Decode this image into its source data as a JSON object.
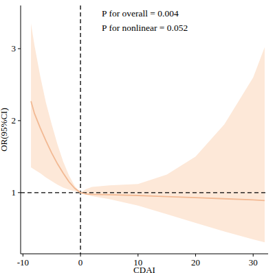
{
  "chart_data": {
    "type": "line",
    "x_label": "CDAI",
    "y_label": "OR(95%CI)",
    "annotations": [
      "P for overall = 0.004",
      "P for nonlinear = 0.052"
    ],
    "xlim": [
      -10.4,
      32.6
    ],
    "ylim": [
      0.15,
      3.6
    ],
    "xticks": [
      -10,
      0,
      10,
      20,
      30
    ],
    "yticks": [
      1,
      2,
      3
    ],
    "hline": 1,
    "vline": 0,
    "series": [
      {
        "name": "OR",
        "color": "#f2b993",
        "band_color": "#fde8d8",
        "x": [
          -8.6,
          -8,
          -7,
          -6,
          -5,
          -4,
          -3,
          -2,
          -1,
          0,
          1,
          2,
          5,
          10,
          15,
          20,
          25,
          30,
          32
        ],
        "values": [
          2.27,
          2.1,
          1.9,
          1.72,
          1.55,
          1.4,
          1.27,
          1.15,
          1.06,
          1.0,
          0.98,
          0.975,
          0.97,
          0.96,
          0.945,
          0.93,
          0.915,
          0.9,
          0.89
        ],
        "lower": [
          1.35,
          1.32,
          1.27,
          1.21,
          1.16,
          1.11,
          1.07,
          1.04,
          1.02,
          1.0,
          0.97,
          0.95,
          0.91,
          0.82,
          0.7,
          0.58,
          0.46,
          0.35,
          0.31
        ],
        "upper": [
          3.35,
          3.05,
          2.62,
          2.25,
          1.95,
          1.67,
          1.43,
          1.24,
          1.09,
          1.0,
          1.05,
          1.08,
          1.1,
          1.12,
          1.25,
          1.5,
          1.95,
          2.6,
          3.02
        ]
      }
    ]
  }
}
